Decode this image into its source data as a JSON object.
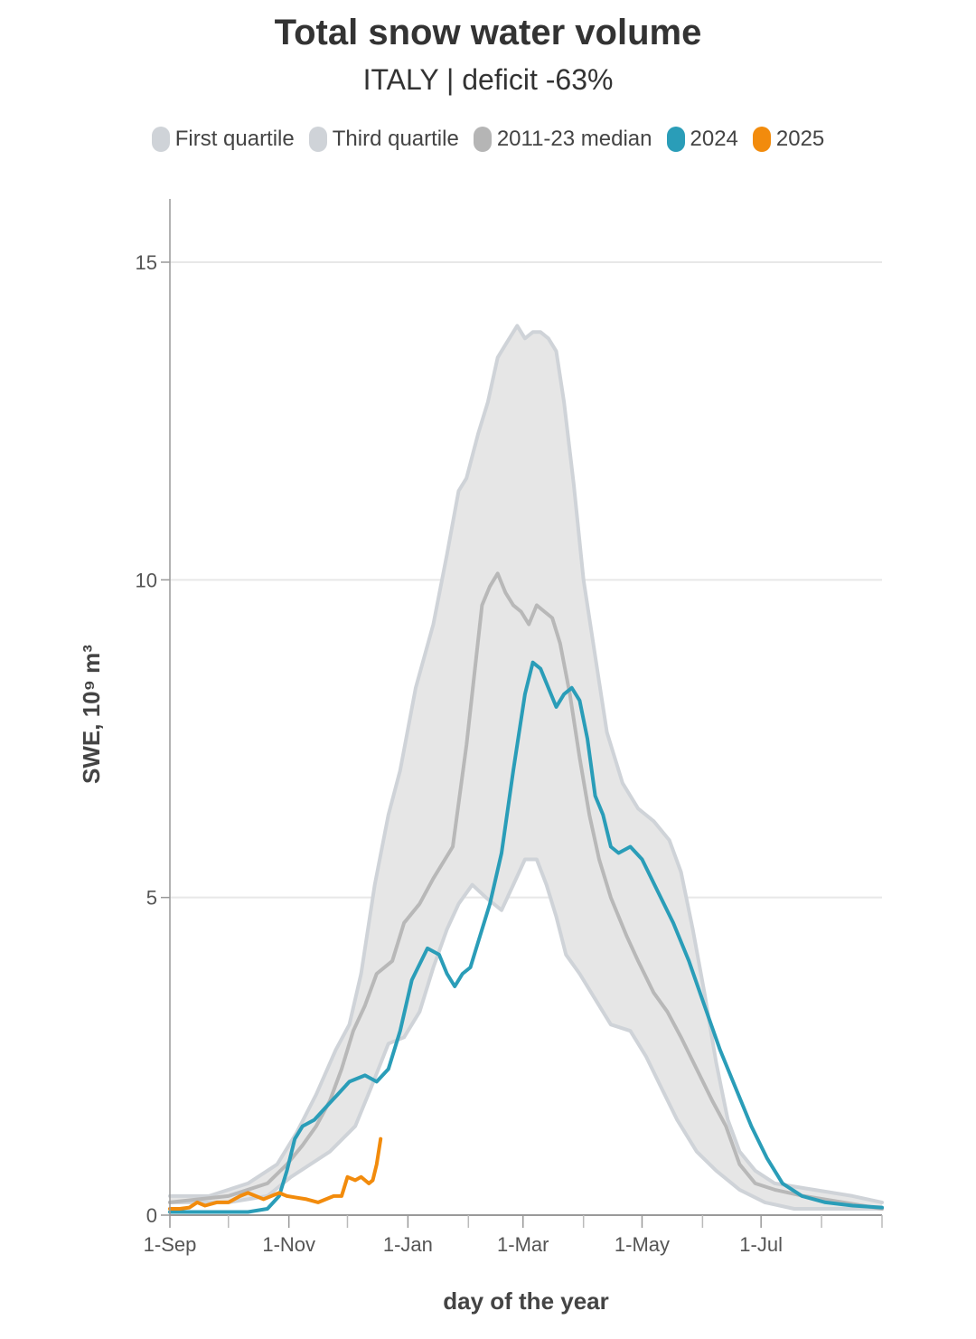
{
  "title": "Total snow water volume",
  "subtitle": "ITALY | deficit -63%",
  "legend": [
    {
      "label": "First quartile",
      "color": "#cfd3d8"
    },
    {
      "label": "Third quartile",
      "color": "#cfd3d8"
    },
    {
      "label": "2011-23 median",
      "color": "#b5b5b5"
    },
    {
      "label": "2024",
      "color": "#2a9db8"
    },
    {
      "label": "2025",
      "color": "#f28b0c"
    }
  ],
  "chart_data": {
    "type": "line",
    "xlabel": "day of the year",
    "ylabel": "SWE, 10⁹ m³",
    "xlim": [
      0,
      365
    ],
    "ylim": [
      0,
      15
    ],
    "x_ticks": [
      {
        "day": 0,
        "label": "1-Sep"
      },
      {
        "day": 61,
        "label": "1-Nov"
      },
      {
        "day": 122,
        "label": "1-Jan"
      },
      {
        "day": 181,
        "label": "1-Mar"
      },
      {
        "day": 242,
        "label": "1-May"
      },
      {
        "day": 303,
        "label": "1-Jul"
      }
    ],
    "x_minor_ticks": [
      30,
      91,
      153,
      212,
      273,
      334,
      365
    ],
    "y_ticks": [
      0,
      5,
      10,
      15
    ],
    "grid": true,
    "band_color": "#e6e6e6",
    "series": [
      {
        "name": "Third quartile",
        "color": "#cfd3d8",
        "points": [
          [
            0,
            0.3
          ],
          [
            20,
            0.3
          ],
          [
            40,
            0.5
          ],
          [
            55,
            0.8
          ],
          [
            65,
            1.3
          ],
          [
            75,
            1.9
          ],
          [
            85,
            2.6
          ],
          [
            92,
            3.0
          ],
          [
            98,
            3.8
          ],
          [
            105,
            5.2
          ],
          [
            112,
            6.3
          ],
          [
            118,
            7.0
          ],
          [
            126,
            8.3
          ],
          [
            135,
            9.3
          ],
          [
            142,
            10.4
          ],
          [
            148,
            11.4
          ],
          [
            152,
            11.6
          ],
          [
            158,
            12.3
          ],
          [
            163,
            12.8
          ],
          [
            168,
            13.5
          ],
          [
            172,
            13.7
          ],
          [
            178,
            14.0
          ],
          [
            182,
            13.8
          ],
          [
            186,
            13.9
          ],
          [
            190,
            13.9
          ],
          [
            194,
            13.8
          ],
          [
            198,
            13.6
          ],
          [
            202,
            12.8
          ],
          [
            207,
            11.5
          ],
          [
            212,
            10.0
          ],
          [
            218,
            8.8
          ],
          [
            224,
            7.6
          ],
          [
            232,
            6.8
          ],
          [
            240,
            6.4
          ],
          [
            248,
            6.2
          ],
          [
            256,
            5.9
          ],
          [
            262,
            5.4
          ],
          [
            268,
            4.5
          ],
          [
            274,
            3.5
          ],
          [
            280,
            2.4
          ],
          [
            286,
            1.5
          ],
          [
            292,
            1.0
          ],
          [
            300,
            0.7
          ],
          [
            310,
            0.5
          ],
          [
            330,
            0.4
          ],
          [
            350,
            0.3
          ],
          [
            365,
            0.2
          ]
        ]
      },
      {
        "name": "First quartile",
        "color": "#cfd3d8",
        "points": [
          [
            0,
            0.2
          ],
          [
            30,
            0.2
          ],
          [
            50,
            0.3
          ],
          [
            62,
            0.6
          ],
          [
            72,
            0.8
          ],
          [
            82,
            1.0
          ],
          [
            95,
            1.4
          ],
          [
            103,
            2.0
          ],
          [
            112,
            2.7
          ],
          [
            120,
            2.8
          ],
          [
            128,
            3.2
          ],
          [
            135,
            3.9
          ],
          [
            142,
            4.5
          ],
          [
            148,
            4.9
          ],
          [
            155,
            5.2
          ],
          [
            162,
            5.0
          ],
          [
            170,
            4.8
          ],
          [
            176,
            5.2
          ],
          [
            182,
            5.6
          ],
          [
            188,
            5.6
          ],
          [
            193,
            5.2
          ],
          [
            198,
            4.7
          ],
          [
            203,
            4.1
          ],
          [
            210,
            3.8
          ],
          [
            218,
            3.4
          ],
          [
            226,
            3.0
          ],
          [
            236,
            2.9
          ],
          [
            244,
            2.5
          ],
          [
            252,
            2.0
          ],
          [
            260,
            1.5
          ],
          [
            270,
            1.0
          ],
          [
            280,
            0.7
          ],
          [
            292,
            0.4
          ],
          [
            305,
            0.2
          ],
          [
            320,
            0.1
          ],
          [
            340,
            0.1
          ],
          [
            365,
            0.1
          ]
        ]
      },
      {
        "name": "2011-23 median",
        "color": "#b8b8b8",
        "points": [
          [
            0,
            0.2
          ],
          [
            30,
            0.3
          ],
          [
            50,
            0.5
          ],
          [
            60,
            0.8
          ],
          [
            68,
            1.1
          ],
          [
            75,
            1.4
          ],
          [
            82,
            1.8
          ],
          [
            88,
            2.3
          ],
          [
            94,
            2.9
          ],
          [
            100,
            3.3
          ],
          [
            106,
            3.8
          ],
          [
            114,
            4.0
          ],
          [
            120,
            4.6
          ],
          [
            128,
            4.9
          ],
          [
            135,
            5.3
          ],
          [
            145,
            5.8
          ],
          [
            152,
            7.4
          ],
          [
            160,
            9.6
          ],
          [
            164,
            9.9
          ],
          [
            168,
            10.1
          ],
          [
            172,
            9.8
          ],
          [
            176,
            9.6
          ],
          [
            180,
            9.5
          ],
          [
            184,
            9.3
          ],
          [
            188,
            9.6
          ],
          [
            192,
            9.5
          ],
          [
            196,
            9.4
          ],
          [
            200,
            9.0
          ],
          [
            205,
            8.2
          ],
          [
            210,
            7.2
          ],
          [
            215,
            6.3
          ],
          [
            220,
            5.6
          ],
          [
            226,
            5.0
          ],
          [
            234,
            4.4
          ],
          [
            240,
            4.0
          ],
          [
            248,
            3.5
          ],
          [
            255,
            3.2
          ],
          [
            262,
            2.8
          ],
          [
            270,
            2.3
          ],
          [
            278,
            1.8
          ],
          [
            285,
            1.4
          ],
          [
            292,
            0.8
          ],
          [
            300,
            0.5
          ],
          [
            310,
            0.4
          ],
          [
            325,
            0.3
          ],
          [
            345,
            0.2
          ],
          [
            365,
            0.1
          ]
        ]
      },
      {
        "name": "2024",
        "color": "#2a9db8",
        "points": [
          [
            0,
            0.05
          ],
          [
            20,
            0.05
          ],
          [
            40,
            0.05
          ],
          [
            50,
            0.1
          ],
          [
            56,
            0.3
          ],
          [
            60,
            0.7
          ],
          [
            64,
            1.2
          ],
          [
            68,
            1.4
          ],
          [
            74,
            1.5
          ],
          [
            80,
            1.7
          ],
          [
            86,
            1.9
          ],
          [
            92,
            2.1
          ],
          [
            100,
            2.2
          ],
          [
            106,
            2.1
          ],
          [
            112,
            2.3
          ],
          [
            118,
            2.9
          ],
          [
            124,
            3.7
          ],
          [
            132,
            4.2
          ],
          [
            138,
            4.1
          ],
          [
            142,
            3.8
          ],
          [
            146,
            3.6
          ],
          [
            150,
            3.8
          ],
          [
            154,
            3.9
          ],
          [
            158,
            4.3
          ],
          [
            164,
            4.9
          ],
          [
            170,
            5.7
          ],
          [
            176,
            7.0
          ],
          [
            182,
            8.2
          ],
          [
            186,
            8.7
          ],
          [
            190,
            8.6
          ],
          [
            194,
            8.3
          ],
          [
            198,
            8.0
          ],
          [
            202,
            8.2
          ],
          [
            206,
            8.3
          ],
          [
            210,
            8.1
          ],
          [
            214,
            7.5
          ],
          [
            218,
            6.6
          ],
          [
            222,
            6.3
          ],
          [
            226,
            5.8
          ],
          [
            230,
            5.7
          ],
          [
            236,
            5.8
          ],
          [
            242,
            5.6
          ],
          [
            250,
            5.1
          ],
          [
            258,
            4.6
          ],
          [
            266,
            4.0
          ],
          [
            274,
            3.3
          ],
          [
            282,
            2.6
          ],
          [
            290,
            2.0
          ],
          [
            298,
            1.4
          ],
          [
            306,
            0.9
          ],
          [
            314,
            0.5
          ],
          [
            324,
            0.3
          ],
          [
            336,
            0.2
          ],
          [
            350,
            0.15
          ],
          [
            365,
            0.12
          ]
        ]
      },
      {
        "name": "2025",
        "color": "#f28b0c",
        "points": [
          [
            0,
            0.1
          ],
          [
            5,
            0.1
          ],
          [
            10,
            0.12
          ],
          [
            14,
            0.2
          ],
          [
            18,
            0.15
          ],
          [
            24,
            0.2
          ],
          [
            30,
            0.2
          ],
          [
            36,
            0.3
          ],
          [
            40,
            0.35
          ],
          [
            44,
            0.3
          ],
          [
            48,
            0.25
          ],
          [
            52,
            0.3
          ],
          [
            56,
            0.35
          ],
          [
            60,
            0.3
          ],
          [
            64,
            0.28
          ],
          [
            70,
            0.25
          ],
          [
            76,
            0.2
          ],
          [
            80,
            0.25
          ],
          [
            84,
            0.3
          ],
          [
            88,
            0.3
          ],
          [
            91,
            0.6
          ],
          [
            95,
            0.55
          ],
          [
            98,
            0.6
          ],
          [
            100,
            0.55
          ],
          [
            102,
            0.5
          ],
          [
            104,
            0.55
          ],
          [
            106,
            0.8
          ],
          [
            108,
            1.2
          ]
        ]
      }
    ]
  }
}
